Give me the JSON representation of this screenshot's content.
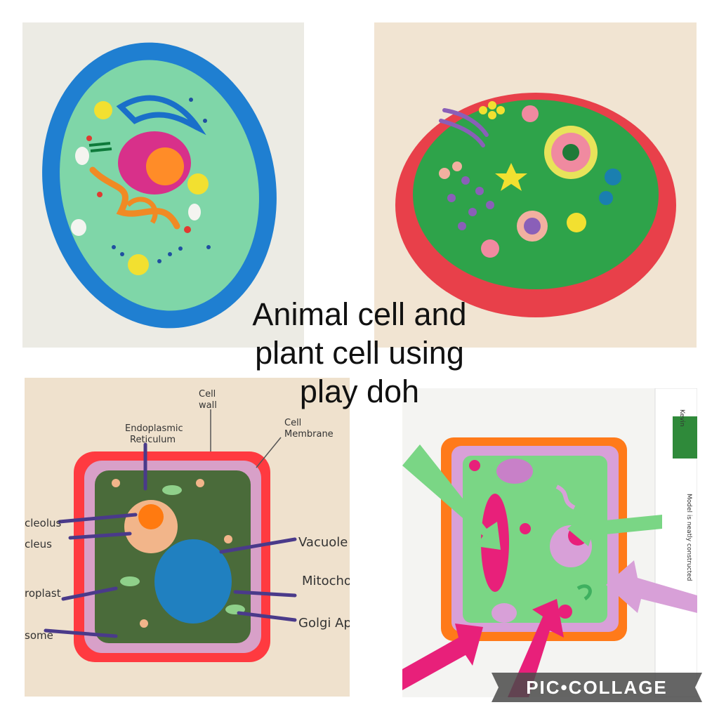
{
  "caption": {
    "line1": "Animal cell and",
    "line2": "plant cell using",
    "line3": "play doh"
  },
  "labels": {
    "endoplasmic": "Endoplasmic",
    "reticulum": "Reticulum",
    "cell_wall_1": "Cell",
    "cell_wall_2": "wall",
    "membrane_1": "Cell",
    "membrane_2": "Membrane",
    "nucleolus": "cleolus",
    "nucleus": "cleus",
    "vacuole": "Vacuole",
    "mitochondria": "Mitochon",
    "chloroplast": "roplast",
    "golgi": "Golgi Ap",
    "ribosome": "some",
    "name_tag": "Kevin",
    "rubric": "Model is neatly constructed"
  },
  "watermark": "PIC•COLLAGE",
  "colors": {
    "caption": "#111111",
    "animal_membrane": "#1f7fd1",
    "animal_cytoplasm": "#7fd6a8",
    "plant2_wall": "#e8404a",
    "plant2_cytoplasm": "#2ea34a",
    "plant3_wall": "#ff3a40",
    "plant3_cytoplasm": "#4a6b3a",
    "plant4_wall": "#ff7a1a",
    "plant4_cytoplasm": "#7ad685",
    "watermark_bg": "#4a4a4a"
  }
}
